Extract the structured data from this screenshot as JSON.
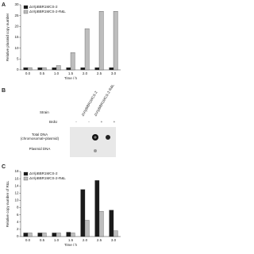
{
  "panels": [
    "A",
    "B",
    "C"
  ],
  "chart_data": [
    {
      "type": "bar",
      "y_label": "Relative plasmid copy number",
      "x_label": "Time / h",
      "categories": [
        "0.0",
        "0.5",
        "1.0",
        "1.5",
        "2.0",
        "2.5",
        "3.0"
      ],
      "series": [
        {
          "name": "ΔV/pBBR1MCS-2",
          "color": "#1a1a1a",
          "values": [
            1,
            1,
            1,
            1,
            1,
            1,
            1
          ]
        },
        {
          "name": "ΔV/pBBR1MCS-2-R&L",
          "color": "#bdbdbd",
          "values": [
            1,
            1,
            2,
            8,
            19,
            27,
            27
          ]
        }
      ],
      "ylim": [
        0,
        30
      ],
      "yticks": [
        0,
        5,
        10,
        15,
        20,
        25,
        30
      ],
      "legend": "upper-left"
    },
    {
      "type": "bar",
      "y_label": "Relative copy number of R&L",
      "x_label": "Time / h",
      "categories": [
        "0.0",
        "0.5",
        "1.0",
        "1.5",
        "2.0",
        "2.5",
        "3.0"
      ],
      "series": [
        {
          "name": "ΔV/pBBR1MCS-2",
          "color": "#1a1a1a",
          "values": [
            1,
            1,
            1,
            1.2,
            13,
            15.5,
            7.3
          ]
        },
        {
          "name": "ΔV/pBBR1MCS-2-R&L",
          "color": "#bdbdbd",
          "values": [
            1,
            1,
            1,
            1,
            4.5,
            7,
            1.6
          ]
        }
      ],
      "ylim": [
        0,
        18
      ],
      "yticks": [
        0,
        2,
        4,
        6,
        8,
        10,
        12,
        14,
        16,
        18
      ],
      "legend": "upper-left"
    }
  ],
  "blot": {
    "strain_label": "Strain",
    "strains": [
      "ΔV/pBBR1MCS-2",
      "ΔV/pBBR1MCS-2-R&L"
    ],
    "brdu_label": "BrdU",
    "brdu": [
      "-",
      "-",
      "+",
      "+"
    ],
    "rows": [
      "Total DNA\n(chromosomal+plasmid)",
      "Plasmid DNA"
    ]
  }
}
